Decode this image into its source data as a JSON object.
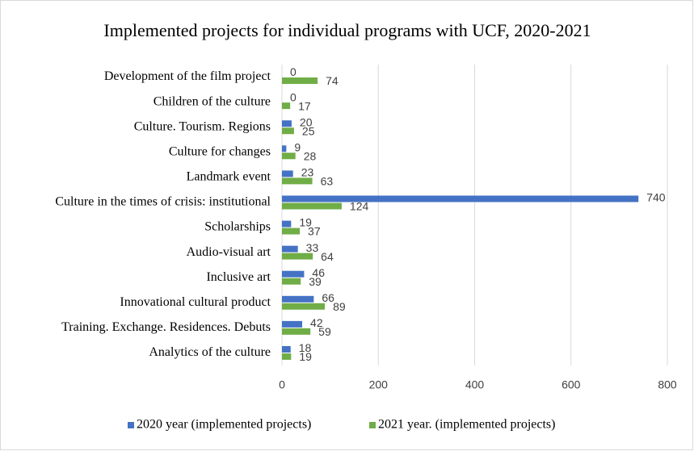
{
  "chart_data": {
    "type": "hbar",
    "title": "Implemented projects for individual programs with UCF, 2020-2021",
    "categories": [
      "Development of the film project",
      "Children of the culture",
      "Culture. Tourism. Regions",
      "Culture for changes",
      "Landmark event",
      "Culture in the times of crisis: institutional",
      "Scholarships",
      "Audio-visual art",
      "Inclusive art",
      "Innovational cultural product",
      "Training. Exchange. Residences. Debuts",
      "Analytics of the culture"
    ],
    "series": [
      {
        "name": "2020 year (implemented projects)",
        "color": "#4472c4",
        "values": [
          0,
          0,
          20,
          9,
          23,
          740,
          19,
          33,
          46,
          66,
          42,
          18
        ]
      },
      {
        "name": "2021 year. (implemented projects)",
        "color": "#70ad47",
        "values": [
          74,
          17,
          25,
          28,
          63,
          124,
          37,
          64,
          39,
          89,
          59,
          19
        ]
      }
    ],
    "xlim": [
      0,
      800
    ],
    "xticks": [
      0,
      200,
      400,
      600,
      800
    ],
    "grid": true,
    "legend": "bottom"
  }
}
